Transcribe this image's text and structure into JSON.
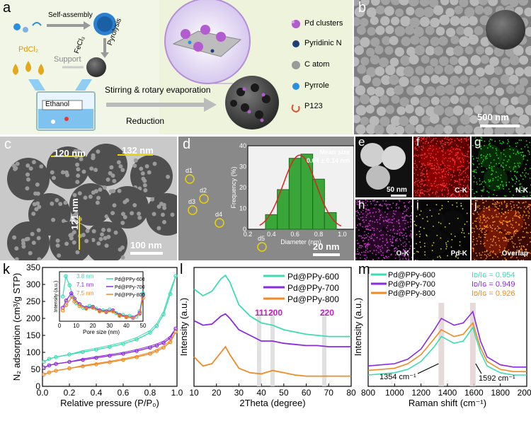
{
  "labels": {
    "a": "a",
    "b": "b",
    "c": "c",
    "d": "d",
    "e": "e",
    "f": "f",
    "g": "g",
    "h": "h",
    "i": "i",
    "j": "j",
    "k": "k",
    "l": "l",
    "m": "m"
  },
  "panel_a": {
    "self_assembly": "Self-assembly",
    "fecl3": "FeCl₃",
    "pyrolysis": "Pyrolysis",
    "pdcl2": "PdCl₂",
    "support": "Support",
    "ethanol": "Ethanol",
    "stirring": "Stirring & rotary evaporation",
    "reduction": "Reduction",
    "legend": [
      {
        "label": "Pd clusters",
        "color": "#b35ccf",
        "icon": "pd-cluster-icon"
      },
      {
        "label": "Pyridinic N",
        "color": "#1e3f7a",
        "icon": "pyridinic-n-icon"
      },
      {
        "label": "C atom",
        "color": "#9a9a9a",
        "icon": "c-atom-icon"
      },
      {
        "label": "Pyrrole",
        "color": "#2b8fe0",
        "icon": "pyrrole-icon"
      },
      {
        "label": "P123",
        "color": "#d9542b",
        "icon": "p123-icon"
      }
    ]
  },
  "panel_b": {
    "scale": "500 nm"
  },
  "panel_c": {
    "d1": "120 nm",
    "d2": "132 nm",
    "d3": "121 nm",
    "scale": "100 nm"
  },
  "panel_d": {
    "spots": [
      "d1",
      "d2",
      "d3",
      "d4",
      "d5"
    ],
    "scale": "20 nm",
    "mean_label": "Mean size",
    "mean_value": "0.64 ± 0.14 nm"
  },
  "panel_e_j": {
    "e_scale": "50 nm",
    "f": "C-K",
    "g": "N-K",
    "h": "O-K",
    "i": "Pd-K",
    "j": "Overlap"
  },
  "colors": {
    "c600": "#3ddbb3",
    "c700": "#8a2be2",
    "c800": "#f08a24",
    "hist": "#3aa63a",
    "pd": "#b35ccf"
  },
  "chart_data": [
    {
      "id": "d-inset",
      "type": "bar",
      "xlabel": "Diameter (nm)",
      "ylabel": "Frequency (%)",
      "xlim": [
        0.2,
        1.1
      ],
      "ylim": [
        0,
        40
      ],
      "xticks": [
        "0.2",
        "0.4",
        "0.6",
        "0.8",
        "1.0"
      ],
      "yticks": [
        "0",
        "10",
        "20",
        "30",
        "40"
      ],
      "bins": [
        [
          0.35,
          0.45
        ],
        [
          0.45,
          0.55
        ],
        [
          0.55,
          0.65
        ],
        [
          0.65,
          0.75
        ],
        [
          0.75,
          0.85
        ],
        [
          0.85,
          0.95
        ]
      ],
      "values": [
        7,
        19,
        34,
        36,
        24,
        8
      ],
      "fit": {
        "type": "gaussian",
        "mean": 0.64,
        "sd": 0.14,
        "peak": 35.5
      }
    },
    {
      "id": "k",
      "type": "line",
      "xlabel": "Relative pressure (P/P₀)",
      "ylabel": "N₂ adsorption (cm³/g STP)",
      "xlim": [
        0,
        1.0
      ],
      "ylim": [
        0,
        350
      ],
      "xticks": [
        "0.0",
        "0.2",
        "0.4",
        "0.6",
        "0.8",
        "1.0"
      ],
      "yticks": [
        "0",
        "50",
        "100",
        "150",
        "200",
        "250",
        "300",
        "350"
      ],
      "series": [
        {
          "name": "Pd@PPy-600",
          "x": [
            0.01,
            0.05,
            0.1,
            0.2,
            0.3,
            0.4,
            0.5,
            0.6,
            0.7,
            0.8,
            0.85,
            0.9,
            0.95,
            0.99
          ],
          "y": [
            72,
            81,
            86,
            94,
            101,
            108,
            116,
            125,
            138,
            158,
            178,
            212,
            272,
            325
          ]
        },
        {
          "name": "Pd@PPy-700",
          "x": [
            0.01,
            0.05,
            0.1,
            0.2,
            0.3,
            0.4,
            0.5,
            0.6,
            0.7,
            0.8,
            0.85,
            0.9,
            0.95,
            0.99
          ],
          "y": [
            55,
            62,
            66,
            72,
            78,
            84,
            90,
            96,
            104,
            114,
            120,
            128,
            142,
            170
          ]
        },
        {
          "name": "Pd@PPy-800",
          "x": [
            0.01,
            0.05,
            0.1,
            0.2,
            0.3,
            0.4,
            0.5,
            0.6,
            0.7,
            0.8,
            0.85,
            0.9,
            0.95,
            0.99
          ],
          "y": [
            35,
            41,
            46,
            53,
            59,
            65,
            71,
            78,
            86,
            96,
            104,
            114,
            130,
            160
          ]
        }
      ]
    },
    {
      "id": "k-inset",
      "type": "line",
      "xlabel": "Pore size (nm)",
      "ylabel": "Intensity (a.u.)",
      "xlim": [
        0,
        50
      ],
      "xticks": [
        "0",
        "10",
        "20",
        "30",
        "40",
        "50"
      ],
      "annotations": [
        "3.8 nm",
        "7.1 nm",
        "7.5 nm"
      ],
      "series": [
        {
          "name": "Pd@PPy-600",
          "x": [
            2,
            3.8,
            6,
            8,
            10,
            14,
            18,
            22,
            26,
            30,
            34,
            38,
            42,
            46,
            48,
            50
          ],
          "y": [
            55,
            100,
            80,
            55,
            40,
            30,
            34,
            28,
            24,
            26,
            18,
            14,
            12,
            10,
            22,
            62
          ]
        },
        {
          "name": "Pd@PPy-700",
          "x": [
            2,
            4,
            7.1,
            9,
            12,
            16,
            20,
            24,
            28,
            32,
            36,
            40,
            44,
            48,
            50
          ],
          "y": [
            30,
            46,
            62,
            50,
            38,
            30,
            32,
            24,
            22,
            24,
            14,
            10,
            8,
            18,
            58
          ]
        },
        {
          "name": "Pd@PPy-800",
          "x": [
            2,
            4,
            7.5,
            9,
            12,
            16,
            20,
            24,
            28,
            32,
            36,
            40,
            44,
            48,
            50
          ],
          "y": [
            24,
            36,
            54,
            44,
            34,
            28,
            30,
            22,
            20,
            22,
            12,
            9,
            7,
            16,
            52
          ]
        }
      ]
    },
    {
      "id": "l",
      "type": "line",
      "xlabel": "2Theta (degree)",
      "ylabel": "Intensity (a.u.)",
      "xlim": [
        10,
        80
      ],
      "xticks": [
        "10",
        "20",
        "30",
        "40",
        "50",
        "60",
        "70",
        "80"
      ],
      "peaks": [
        {
          "label": "111",
          "x": 39
        },
        {
          "label": "200",
          "x": 45
        },
        {
          "label": "220",
          "x": 68
        }
      ],
      "series": [
        {
          "name": "Pd@PPy-600",
          "x": [
            10,
            14,
            18,
            22,
            24,
            26,
            30,
            35,
            40,
            45,
            50,
            55,
            60,
            65,
            70,
            75,
            80
          ],
          "y": [
            0.86,
            0.8,
            0.84,
            0.95,
            0.98,
            0.92,
            0.72,
            0.62,
            0.56,
            0.54,
            0.5,
            0.48,
            0.46,
            0.45,
            0.44,
            0.44,
            0.44
          ]
        },
        {
          "name": "Pd@PPy-700",
          "x": [
            10,
            14,
            18,
            22,
            24,
            26,
            30,
            35,
            40,
            45,
            50,
            55,
            60,
            65,
            70,
            75,
            80
          ],
          "y": [
            0.58,
            0.54,
            0.55,
            0.62,
            0.64,
            0.6,
            0.5,
            0.45,
            0.4,
            0.4,
            0.38,
            0.37,
            0.36,
            0.36,
            0.35,
            0.35,
            0.35
          ]
        },
        {
          "name": "Pd@PPy-800",
          "x": [
            10,
            14,
            18,
            22,
            24,
            26,
            30,
            35,
            40,
            45,
            50,
            55,
            60,
            65,
            70,
            75,
            80
          ],
          "y": [
            0.26,
            0.18,
            0.2,
            0.3,
            0.35,
            0.28,
            0.16,
            0.12,
            0.11,
            0.14,
            0.12,
            0.1,
            0.09,
            0.09,
            0.09,
            0.09,
            0.09
          ]
        }
      ]
    },
    {
      "id": "m",
      "type": "line",
      "xlabel": "Raman shift (cm⁻¹)",
      "ylabel": "Intensity (a.u.)",
      "xlim": [
        800,
        2000
      ],
      "xticks": [
        "800",
        "900",
        "1000",
        "1100",
        "1200",
        "1300",
        "1400",
        "1500",
        "1600",
        "1700",
        "1800",
        "1900",
        "2000"
      ],
      "bands": [
        {
          "label": "1354 cm⁻¹",
          "x": 1354
        },
        {
          "label": "1592 cm⁻¹",
          "x": 1592
        }
      ],
      "ratios": [
        {
          "name": "Pd@PPy-600",
          "text": "Iᴅ/Iɢ = 0.954"
        },
        {
          "name": "Pd@PPy-700",
          "text": "Iᴅ/Iɢ = 0.949"
        },
        {
          "name": "Pd@PPy-800",
          "text": "Iᴅ/Iɢ = 0.926"
        }
      ],
      "series": [
        {
          "name": "Pd@PPy-600",
          "x": [
            800,
            900,
            1000,
            1100,
            1200,
            1300,
            1354,
            1450,
            1520,
            1592,
            1650,
            1700,
            1800,
            1900,
            2000
          ],
          "y": [
            0.1,
            0.11,
            0.12,
            0.15,
            0.22,
            0.35,
            0.44,
            0.38,
            0.4,
            0.52,
            0.3,
            0.18,
            0.12,
            0.1,
            0.1
          ]
        },
        {
          "name": "Pd@PPy-700",
          "x": [
            800,
            900,
            1000,
            1100,
            1200,
            1300,
            1354,
            1450,
            1520,
            1592,
            1650,
            1700,
            1800,
            1900,
            2000
          ],
          "y": [
            0.18,
            0.19,
            0.2,
            0.24,
            0.33,
            0.5,
            0.6,
            0.54,
            0.56,
            0.66,
            0.4,
            0.26,
            0.19,
            0.17,
            0.17
          ]
        },
        {
          "name": "Pd@PPy-800",
          "x": [
            800,
            900,
            1000,
            1100,
            1200,
            1300,
            1354,
            1450,
            1520,
            1592,
            1650,
            1700,
            1800,
            1900,
            2000
          ],
          "y": [
            0.14,
            0.15,
            0.16,
            0.2,
            0.28,
            0.42,
            0.5,
            0.44,
            0.46,
            0.56,
            0.34,
            0.22,
            0.15,
            0.13,
            0.13
          ]
        }
      ]
    }
  ]
}
